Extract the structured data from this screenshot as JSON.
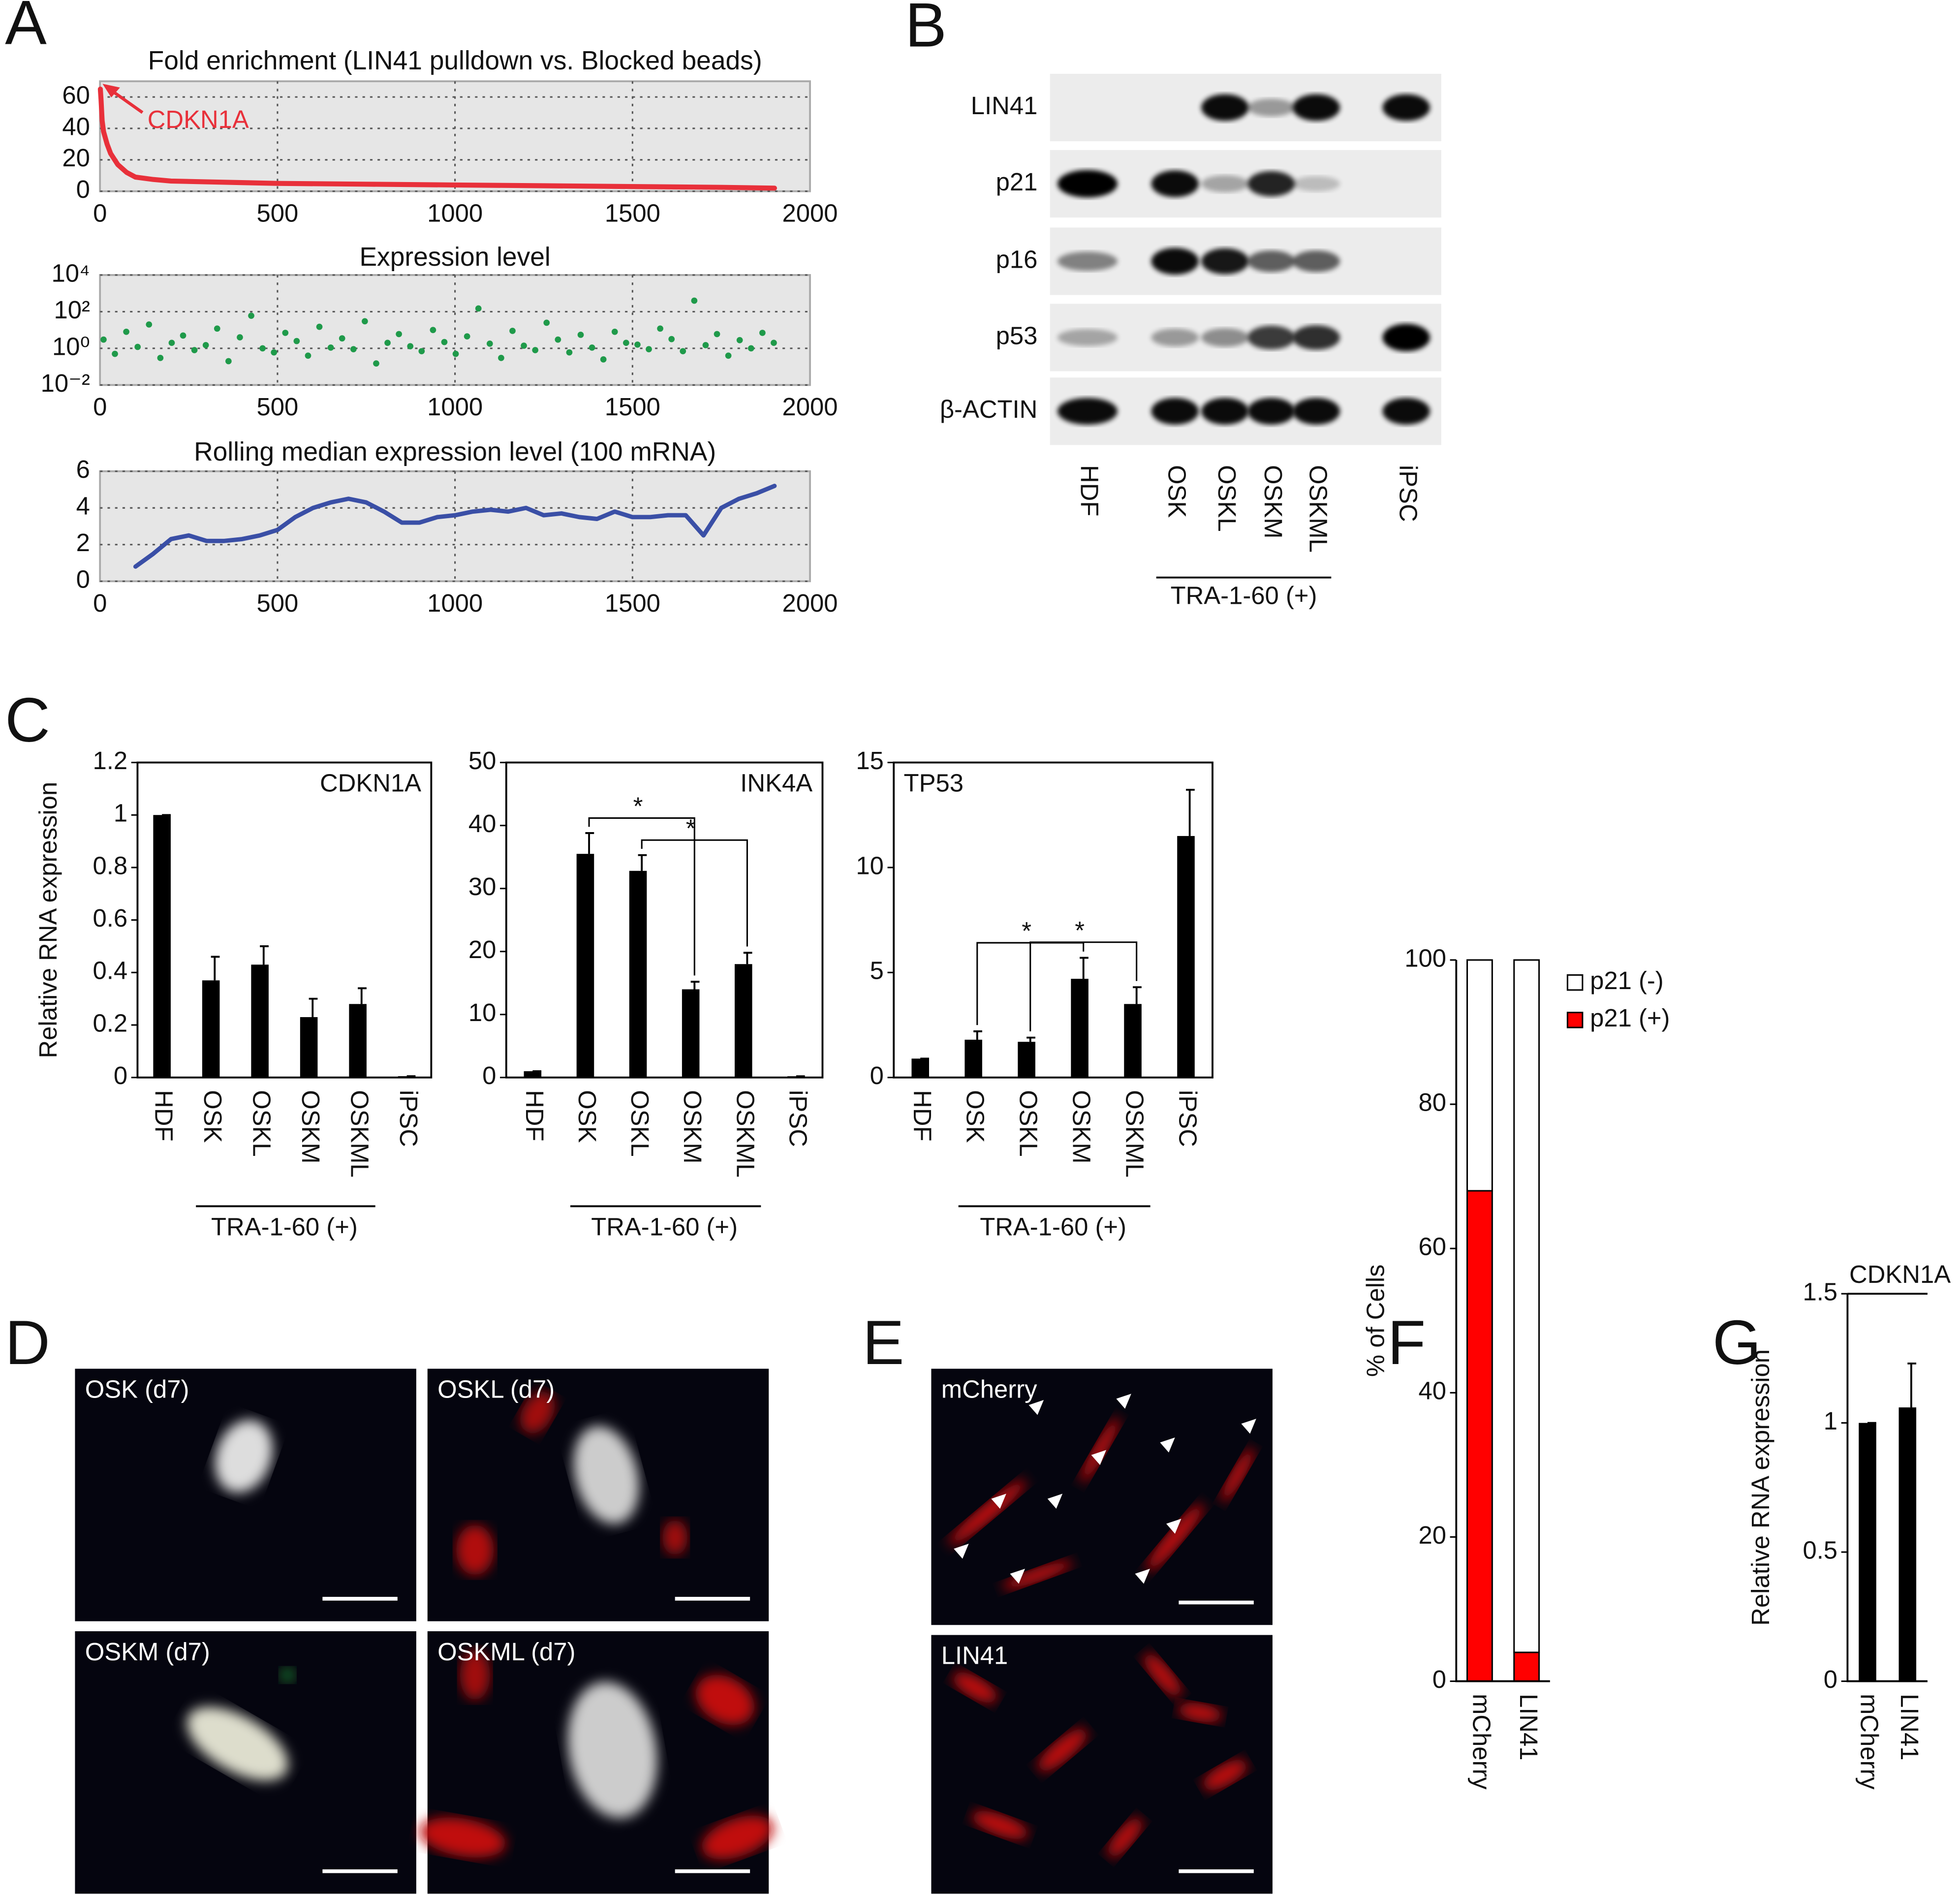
{
  "panel_labels": [
    "A",
    "B",
    "C",
    "D",
    "E",
    "F",
    "G"
  ],
  "blot": {
    "proteins": [
      "LIN41",
      "p21",
      "p16",
      "p53",
      "β-ACTIN"
    ],
    "lanes": [
      "HDF",
      "OSK",
      "OSKL",
      "OSKM",
      "OSKML",
      "iPSC"
    ],
    "group_label": "TRA-1-60 (+)"
  },
  "micrographs": {
    "D": [
      "OSK (d7)",
      "OSKL (d7)",
      "OSKM (d7)",
      "OSKML (d7)"
    ],
    "E": [
      "mCherry",
      "LIN41"
    ]
  },
  "chart_data": [
    {
      "type": "line",
      "title": "Fold enrichment (LIN41 pulldown vs. Blocked beads)",
      "annotations": [
        "CDKN1A"
      ],
      "x": [
        1,
        3,
        6,
        10,
        20,
        30,
        50,
        75,
        100,
        150,
        200,
        300,
        400,
        500,
        750,
        1000,
        1250,
        1500,
        1750,
        1900
      ],
      "values": [
        65,
        58,
        45,
        38,
        30,
        24,
        17,
        12,
        9,
        7.5,
        6.5,
        6,
        5.5,
        5,
        4.5,
        4,
        3.5,
        3,
        2.5,
        2
      ],
      "color": "#e8303a",
      "xlim": [
        0,
        2000
      ],
      "xticks": [
        0,
        500,
        1000,
        1500,
        2000
      ],
      "ylim": [
        0,
        70
      ],
      "yticks": [
        0,
        20,
        40,
        60
      ],
      "grid": true
    },
    {
      "type": "scatter",
      "title": "Expression level",
      "x": [
        10,
        42,
        74,
        106,
        138,
        170,
        202,
        234,
        266,
        298,
        330,
        362,
        394,
        426,
        458,
        490,
        522,
        554,
        586,
        618,
        650,
        682,
        714,
        746,
        778,
        810,
        842,
        874,
        906,
        938,
        970,
        1002,
        1034,
        1066,
        1098,
        1130,
        1162,
        1194,
        1226,
        1258,
        1290,
        1322,
        1354,
        1386,
        1418,
        1450,
        1482,
        1514,
        1546,
        1578,
        1610,
        1642,
        1674,
        1706,
        1738,
        1770,
        1802,
        1834,
        1866,
        1898
      ],
      "values": [
        3,
        0.5,
        8,
        1.2,
        20,
        0.3,
        2,
        5,
        0.8,
        1.5,
        12,
        0.2,
        4,
        60,
        1,
        0.6,
        7,
        2.5,
        0.4,
        15,
        1.1,
        3.5,
        0.9,
        30,
        0.15,
        2,
        6,
        1.3,
        0.7,
        10,
        2.2,
        0.5,
        4.5,
        150,
        1.8,
        0.3,
        9,
        1.4,
        0.8,
        25,
        3,
        0.6,
        5.5,
        1.1,
        0.25,
        8,
        2,
        1.6,
        0.9,
        12,
        3.2,
        0.7,
        400,
        1.5,
        6,
        0.4,
        2.8,
        1,
        7,
        2
      ],
      "color": "#1f9a4a",
      "yscale": "log",
      "xlim": [
        0,
        2000
      ],
      "xticks": [
        0,
        500,
        1000,
        1500,
        2000
      ],
      "ylim": [
        0.01,
        10000
      ],
      "yticks": [
        {
          "value": 0.01,
          "label": "10⁻²"
        },
        {
          "value": 1,
          "label": "10⁰"
        },
        {
          "value": 100,
          "label": "10²"
        },
        {
          "value": 10000,
          "label": "10⁴"
        }
      ],
      "grid": true
    },
    {
      "type": "line",
      "title": "Rolling median expression level (100 mRNA)",
      "x": [
        100,
        150,
        200,
        250,
        300,
        350,
        400,
        450,
        500,
        550,
        600,
        650,
        700,
        750,
        800,
        850,
        900,
        950,
        1000,
        1050,
        1100,
        1150,
        1200,
        1250,
        1300,
        1350,
        1400,
        1450,
        1500,
        1550,
        1600,
        1650,
        1700,
        1750,
        1800,
        1850,
        1900
      ],
      "values": [
        0.8,
        1.5,
        2.3,
        2.5,
        2.2,
        2.2,
        2.3,
        2.5,
        2.8,
        3.5,
        4.0,
        4.3,
        4.5,
        4.3,
        3.8,
        3.2,
        3.2,
        3.5,
        3.6,
        3.8,
        3.9,
        3.8,
        4.0,
        3.6,
        3.7,
        3.5,
        3.4,
        3.8,
        3.5,
        3.5,
        3.6,
        3.6,
        2.5,
        4.0,
        4.5,
        4.8,
        5.2
      ],
      "color": "#3a4fa6",
      "xlim": [
        0,
        2000
      ],
      "xticks": [
        0,
        500,
        1000,
        1500,
        2000
      ],
      "ylim": [
        0,
        6
      ],
      "yticks": [
        0,
        2,
        4,
        6
      ],
      "grid": true
    },
    {
      "type": "bar",
      "title": "CDKN1A",
      "ylabel": "Relative RNA expression",
      "group_label": "TRA-1-60 (+)",
      "categories": [
        "HDF",
        "OSK",
        "OSKL",
        "OSKM",
        "OSKML",
        "iPSC"
      ],
      "values": [
        1,
        0.37,
        0.43,
        0.23,
        0.28,
        0.005
      ],
      "errors": [
        0,
        0.09,
        0.07,
        0.07,
        0.06,
        0
      ],
      "color": "#000000",
      "ylim": [
        0,
        1.2
      ],
      "yticks": [
        0,
        0.2,
        0.4,
        0.6,
        0.8,
        1,
        1.2
      ]
    },
    {
      "type": "bar",
      "title": "INK4A",
      "group_label": "TRA-1-60 (+)",
      "annotations": [
        "*",
        "*"
      ],
      "categories": [
        "HDF",
        "OSK",
        "OSKL",
        "OSKM",
        "OSKML",
        "iPSC"
      ],
      "values": [
        1,
        35.5,
        32.8,
        14,
        18,
        0.2
      ],
      "errors": [
        0,
        3.3,
        2.5,
        1.2,
        1.8,
        0
      ],
      "color": "#000000",
      "ylim": [
        0,
        50
      ],
      "yticks": [
        0,
        10,
        20,
        30,
        40,
        50
      ]
    },
    {
      "type": "bar",
      "title": "TP53",
      "group_label": "TRA-1-60 (+)",
      "annotations": [
        "*",
        "*"
      ],
      "categories": [
        "HDF",
        "OSK",
        "OSKL",
        "OSKM",
        "OSKML",
        "iPSC"
      ],
      "values": [
        0.9,
        1.8,
        1.7,
        4.7,
        3.5,
        11.5
      ],
      "errors": [
        0,
        0.4,
        0.2,
        1,
        0.8,
        2.2
      ],
      "color": "#000000",
      "ylim": [
        0,
        15
      ],
      "yticks": [
        0,
        5,
        10,
        15
      ]
    },
    {
      "type": "stacked_bar",
      "ylabel": "% of Cells",
      "categories": [
        "mCherry",
        "LIN41"
      ],
      "series": [
        {
          "name": "p21 (-)",
          "color": "#ffffff",
          "values": [
            32,
            96
          ]
        },
        {
          "name": "p21 (+)",
          "color": "#ff0000",
          "values": [
            68,
            4
          ]
        }
      ],
      "ylim": [
        0,
        100
      ],
      "yticks": [
        0,
        20,
        40,
        60,
        80,
        100
      ],
      "legend": "right"
    },
    {
      "type": "bar",
      "title": "CDKN1A",
      "ylabel": "Relative RNA expression",
      "categories": [
        "mCherry",
        "LIN41"
      ],
      "values": [
        1,
        1.06
      ],
      "errors": [
        0,
        0.17
      ],
      "color": "#000000",
      "ylim": [
        0,
        1.5
      ],
      "yticks": [
        0,
        0.5,
        1,
        1.5
      ]
    }
  ]
}
